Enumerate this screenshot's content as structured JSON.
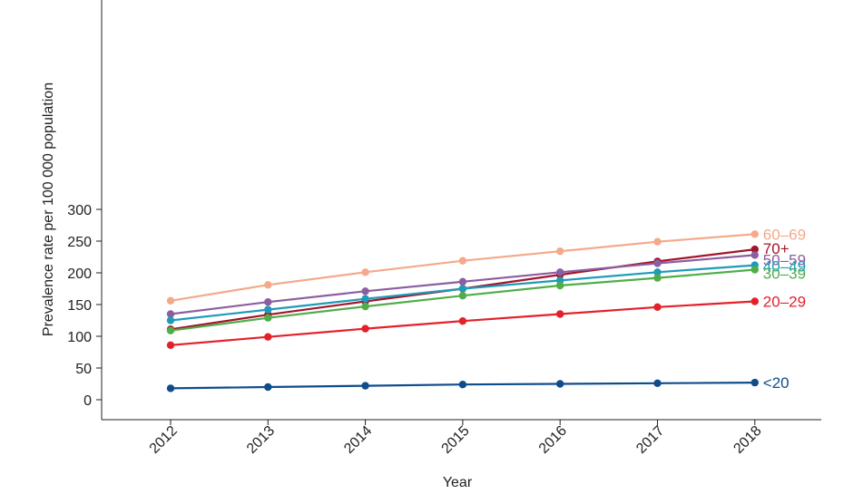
{
  "chart_data": {
    "type": "line",
    "title": "",
    "xlabel": "Year",
    "ylabel": "Prevalence rate per 100 000 population",
    "ylim": [
      -15,
      315
    ],
    "yticks": [
      0,
      50,
      100,
      150,
      200,
      250,
      300
    ],
    "grid": false,
    "legend": "inline labels at line ends",
    "x": [
      "2012",
      "2013",
      "2014",
      "2015",
      "2016",
      "2017",
      "2018"
    ],
    "series": [
      {
        "name": "60‒69",
        "color": "#f4a98a",
        "values": [
          156,
          181,
          201,
          219,
          234,
          249,
          261
        ]
      },
      {
        "name": "70+",
        "color": "#a3152b",
        "values": [
          111,
          134,
          155,
          175,
          197,
          218,
          237
        ]
      },
      {
        "name": "50‒59",
        "color": "#8b5ea1",
        "values": [
          135,
          154,
          171,
          186,
          201,
          215,
          228
        ]
      },
      {
        "name": "40‒49",
        "color": "#1e9bb8",
        "values": [
          125,
          142,
          159,
          175,
          188,
          201,
          212
        ]
      },
      {
        "name": "30‒39",
        "color": "#4fae48",
        "values": [
          109,
          129,
          147,
          164,
          180,
          192,
          205
        ]
      },
      {
        "name": "20‒29",
        "color": "#e3212b",
        "values": [
          86,
          99,
          112,
          124,
          135,
          146,
          155
        ]
      },
      {
        "name": "<20",
        "color": "#0f4c8c",
        "values": [
          18,
          20,
          22,
          24,
          25,
          26,
          27
        ]
      }
    ]
  }
}
